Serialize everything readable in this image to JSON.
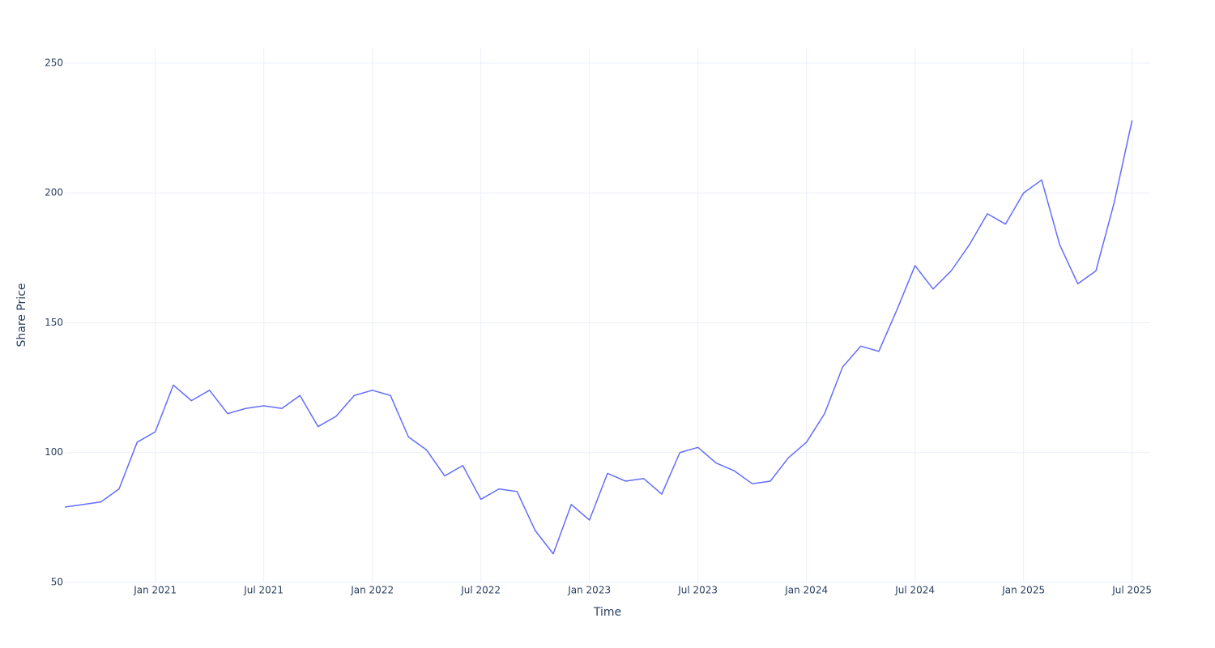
{
  "chart_data": {
    "type": "line",
    "x_label": "Time",
    "y_label": "Share Price",
    "x": [
      "2020-08",
      "2020-09",
      "2020-10",
      "2020-11",
      "2020-12",
      "2021-01",
      "2021-02",
      "2021-03",
      "2021-04",
      "2021-05",
      "2021-06",
      "2021-07",
      "2021-08",
      "2021-09",
      "2021-10",
      "2021-11",
      "2021-12",
      "2022-01",
      "2022-02",
      "2022-03",
      "2022-04",
      "2022-05",
      "2022-06",
      "2022-07",
      "2022-08",
      "2022-09",
      "2022-10",
      "2022-11",
      "2022-12",
      "2023-01",
      "2023-02",
      "2023-03",
      "2023-04",
      "2023-05",
      "2023-06",
      "2023-07",
      "2023-08",
      "2023-09",
      "2023-10",
      "2023-11",
      "2023-12",
      "2024-01",
      "2024-02",
      "2024-03",
      "2024-04",
      "2024-05",
      "2024-06",
      "2024-07",
      "2024-08",
      "2024-09",
      "2024-10",
      "2024-11",
      "2024-12",
      "2025-01",
      "2025-02",
      "2025-03",
      "2025-04",
      "2025-05",
      "2025-06",
      "2025-07"
    ],
    "series": [
      {
        "name": "Share Price",
        "color": "#636efa",
        "values": [
          79,
          80,
          81,
          86,
          104,
          108,
          126,
          120,
          124,
          115,
          117,
          118,
          117,
          122,
          110,
          114,
          122,
          124,
          122,
          106,
          101,
          91,
          95,
          82,
          86,
          85,
          70,
          61,
          80,
          74,
          92,
          89,
          90,
          84,
          100,
          102,
          96,
          93,
          88,
          89,
          98,
          104,
          115,
          133,
          141,
          139,
          155,
          172,
          163,
          170,
          180,
          192,
          188,
          200,
          205,
          180,
          165,
          170,
          196,
          228
        ]
      }
    ],
    "xlim": [
      "2020-08",
      "2025-08"
    ],
    "xticks": [
      {
        "value": "2021-01",
        "label": "Jan 2021"
      },
      {
        "value": "2021-07",
        "label": "Jul 2021"
      },
      {
        "value": "2022-01",
        "label": "Jan 2022"
      },
      {
        "value": "2022-07",
        "label": "Jul 2022"
      },
      {
        "value": "2023-01",
        "label": "Jan 2023"
      },
      {
        "value": "2023-07",
        "label": "Jul 2023"
      },
      {
        "value": "2024-01",
        "label": "Jan 2024"
      },
      {
        "value": "2024-07",
        "label": "Jul 2024"
      },
      {
        "value": "2025-01",
        "label": "Jan 2025"
      },
      {
        "value": "2025-07",
        "label": "Jul 2025"
      }
    ],
    "ylim": [
      50,
      255.6
    ],
    "yticks": [
      50,
      100,
      150,
      200,
      250
    ],
    "grid": true
  }
}
